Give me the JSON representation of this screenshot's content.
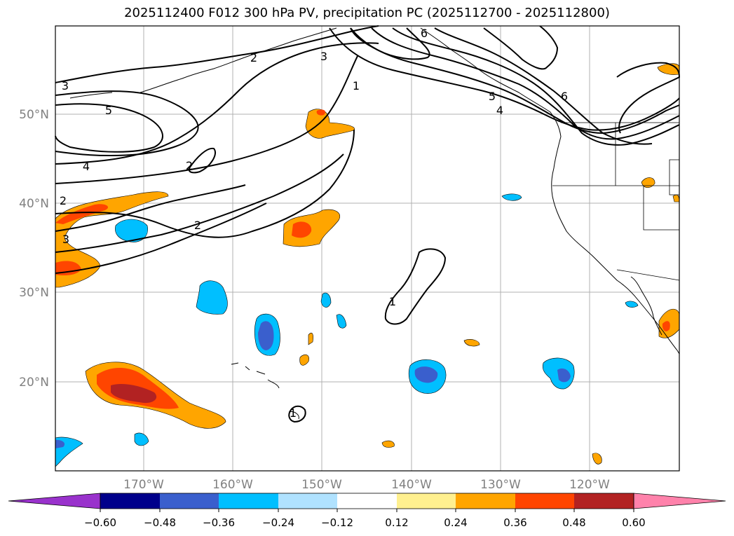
{
  "title": "2025112400 F012 300 hPa PV, precipitation PC (2025112700 - 2025112800)",
  "map": {
    "lat_ticks": [
      "50°N",
      "40°N",
      "30°N",
      "20°N"
    ],
    "lon_ticks": [
      "170°W",
      "160°W",
      "150°W",
      "140°W",
      "130°W",
      "120°W"
    ],
    "lat_values": [
      50,
      40,
      30,
      20
    ],
    "lon_values": [
      -170,
      -160,
      -150,
      -140,
      -130,
      -120
    ],
    "extent": {
      "lon_min": -180,
      "lon_max": -110,
      "lat_min": 10,
      "lat_max": 60
    },
    "grid": true,
    "contour_labels": [
      "3",
      "2",
      "3",
      "1",
      "6",
      "5",
      "4",
      "6",
      "5",
      "4",
      "2",
      "2",
      "3",
      "2",
      "1",
      "1"
    ]
  },
  "colorbar": {
    "tick_labels": [
      "−0.60",
      "−0.48",
      "−0.36",
      "−0.24",
      "−0.12",
      "0.12",
      "0.24",
      "0.36",
      "0.48",
      "0.60"
    ],
    "colors": [
      "#9932cc",
      "#00008b",
      "#3a5fcd",
      "#00bfff",
      "#b0e2ff",
      "#ffffff",
      "#fff08f",
      "#ffa500",
      "#ff4500",
      "#b22222",
      "#ff82ab"
    ]
  },
  "colors": {
    "grid": "#b0b0b0",
    "contour": "#000000",
    "tick_text": "#808080"
  }
}
